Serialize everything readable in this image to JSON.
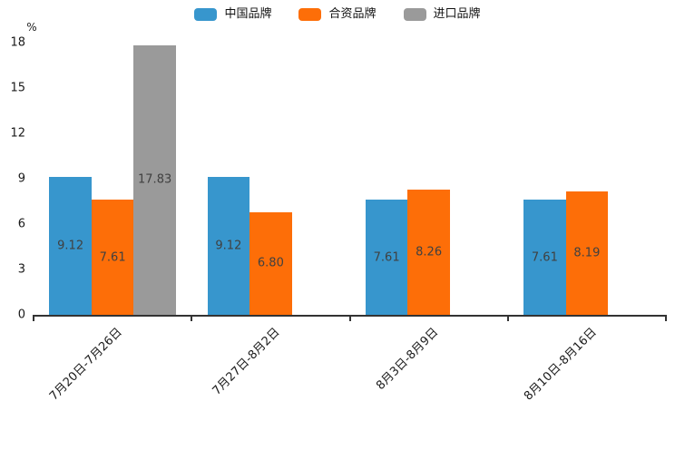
{
  "chart_data": {
    "type": "bar",
    "title": "",
    "ylabel": "%",
    "categories": [
      "7月20日-7月26日",
      "7月27日-8月2日",
      "8月3日-8月9日",
      "8月10日-8月16日"
    ],
    "series": [
      {
        "name": "中国品牌",
        "color": "#3796cd",
        "values": [
          9.12,
          9.12,
          7.61,
          7.61
        ]
      },
      {
        "name": "合资品牌",
        "color": "#fd6e08",
        "values": [
          7.61,
          6.8,
          8.26,
          8.19
        ]
      },
      {
        "name": "进口品牌",
        "color": "#9a9a9a",
        "values": [
          17.83,
          null,
          null,
          null
        ]
      }
    ],
    "value_label_decimals": 2,
    "value_label_color": "#404040",
    "yticks": [
      0,
      3,
      6,
      9,
      12,
      15,
      18
    ],
    "ylim": [
      0,
      18
    ],
    "grid": false,
    "legend_position": "top",
    "xlabel_rotation_deg": 45,
    "axis_color": "#333333"
  }
}
